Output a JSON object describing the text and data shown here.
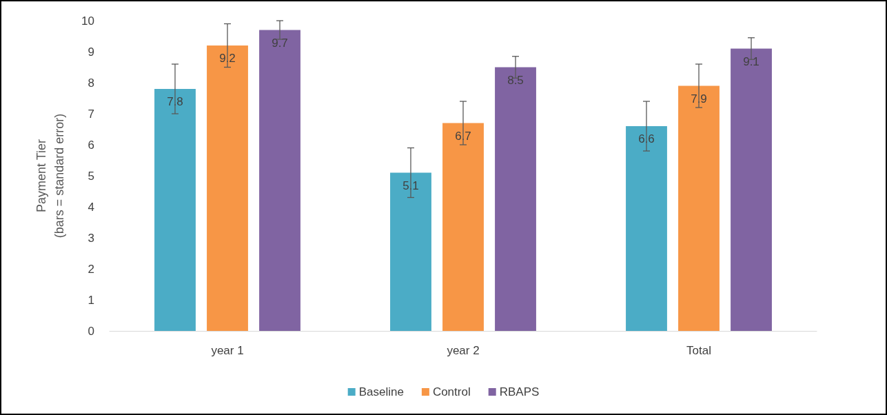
{
  "chart_data": {
    "type": "bar",
    "ylabel": "Payment Tier\n(bars = standard error)",
    "categories": [
      "year 1",
      "year 2",
      "Total"
    ],
    "series": [
      {
        "name": "Baseline",
        "color": "#4bacc6",
        "values": [
          7.8,
          5.1,
          6.6
        ],
        "errors": [
          0.8,
          0.8,
          0.8
        ]
      },
      {
        "name": "Control",
        "color": "#f79646",
        "values": [
          9.2,
          6.7,
          7.9
        ],
        "errors": [
          0.7,
          0.7,
          0.7
        ]
      },
      {
        "name": "RBAPS",
        "color": "#8064a2",
        "values": [
          9.7,
          8.5,
          9.1
        ],
        "errors": [
          0.3,
          0.35,
          0.35
        ]
      }
    ],
    "ylim": [
      0,
      10
    ],
    "yticks": [
      0,
      1,
      2,
      3,
      4,
      5,
      6,
      7,
      8,
      9,
      10
    ],
    "grid": false,
    "legend": "bottom",
    "data_labels": true
  }
}
